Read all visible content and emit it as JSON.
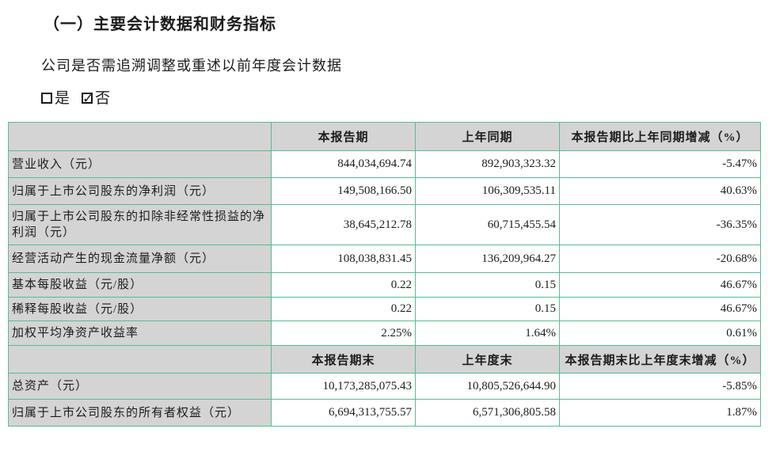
{
  "document": {
    "section_title": "（一）主要会计数据和财务指标",
    "question": "公司是否需追溯调整或重述以前年度会计数据",
    "option_yes_label": "是",
    "option_no_label": "否",
    "option_yes_checked": false,
    "option_no_checked": true,
    "check_mark": "✓"
  },
  "colors": {
    "table_border": "#58bd8e",
    "header_bg": "#d4d4d4"
  },
  "table": {
    "period_section": {
      "headers": [
        "本报告期",
        "上年同期",
        "本报告期比上年同期增减（%）"
      ],
      "rows": [
        {
          "label": "营业收入（元）",
          "current": "844,034,694.74",
          "prior": "892,903,323.32",
          "change": "-5.47%"
        },
        {
          "label": "归属于上市公司股东的净利润（元）",
          "current": "149,508,166.50",
          "prior": "106,309,535.11",
          "change": "40.63%"
        },
        {
          "label": "归属于上市公司股东的扣除非经常性损益的净利润（元）",
          "current": "38,645,212.78",
          "prior": "60,715,455.54",
          "change": "-36.35%"
        },
        {
          "label": "经营活动产生的现金流量净额（元）",
          "current": "108,038,831.45",
          "prior": "136,209,964.27",
          "change": "-20.68%"
        },
        {
          "label": "基本每股收益（元/股）",
          "current": "0.22",
          "prior": "0.15",
          "change": "46.67%"
        },
        {
          "label": "稀释每股收益（元/股）",
          "current": "0.22",
          "prior": "0.15",
          "change": "46.67%"
        },
        {
          "label": "加权平均净资产收益率",
          "current": "2.25%",
          "prior": "1.64%",
          "change": "0.61%"
        }
      ]
    },
    "period_end_section": {
      "headers": [
        "本报告期末",
        "上年度末",
        "本报告期末比上年度末增减（%）"
      ],
      "rows": [
        {
          "label": "总资产（元）",
          "current": "10,173,285,075.43",
          "prior": "10,805,526,644.90",
          "change": "-5.85%"
        },
        {
          "label": "归属于上市公司股东的所有者权益（元）",
          "current": "6,694,313,755.57",
          "prior": "6,571,306,805.58",
          "change": "1.87%"
        }
      ]
    }
  }
}
